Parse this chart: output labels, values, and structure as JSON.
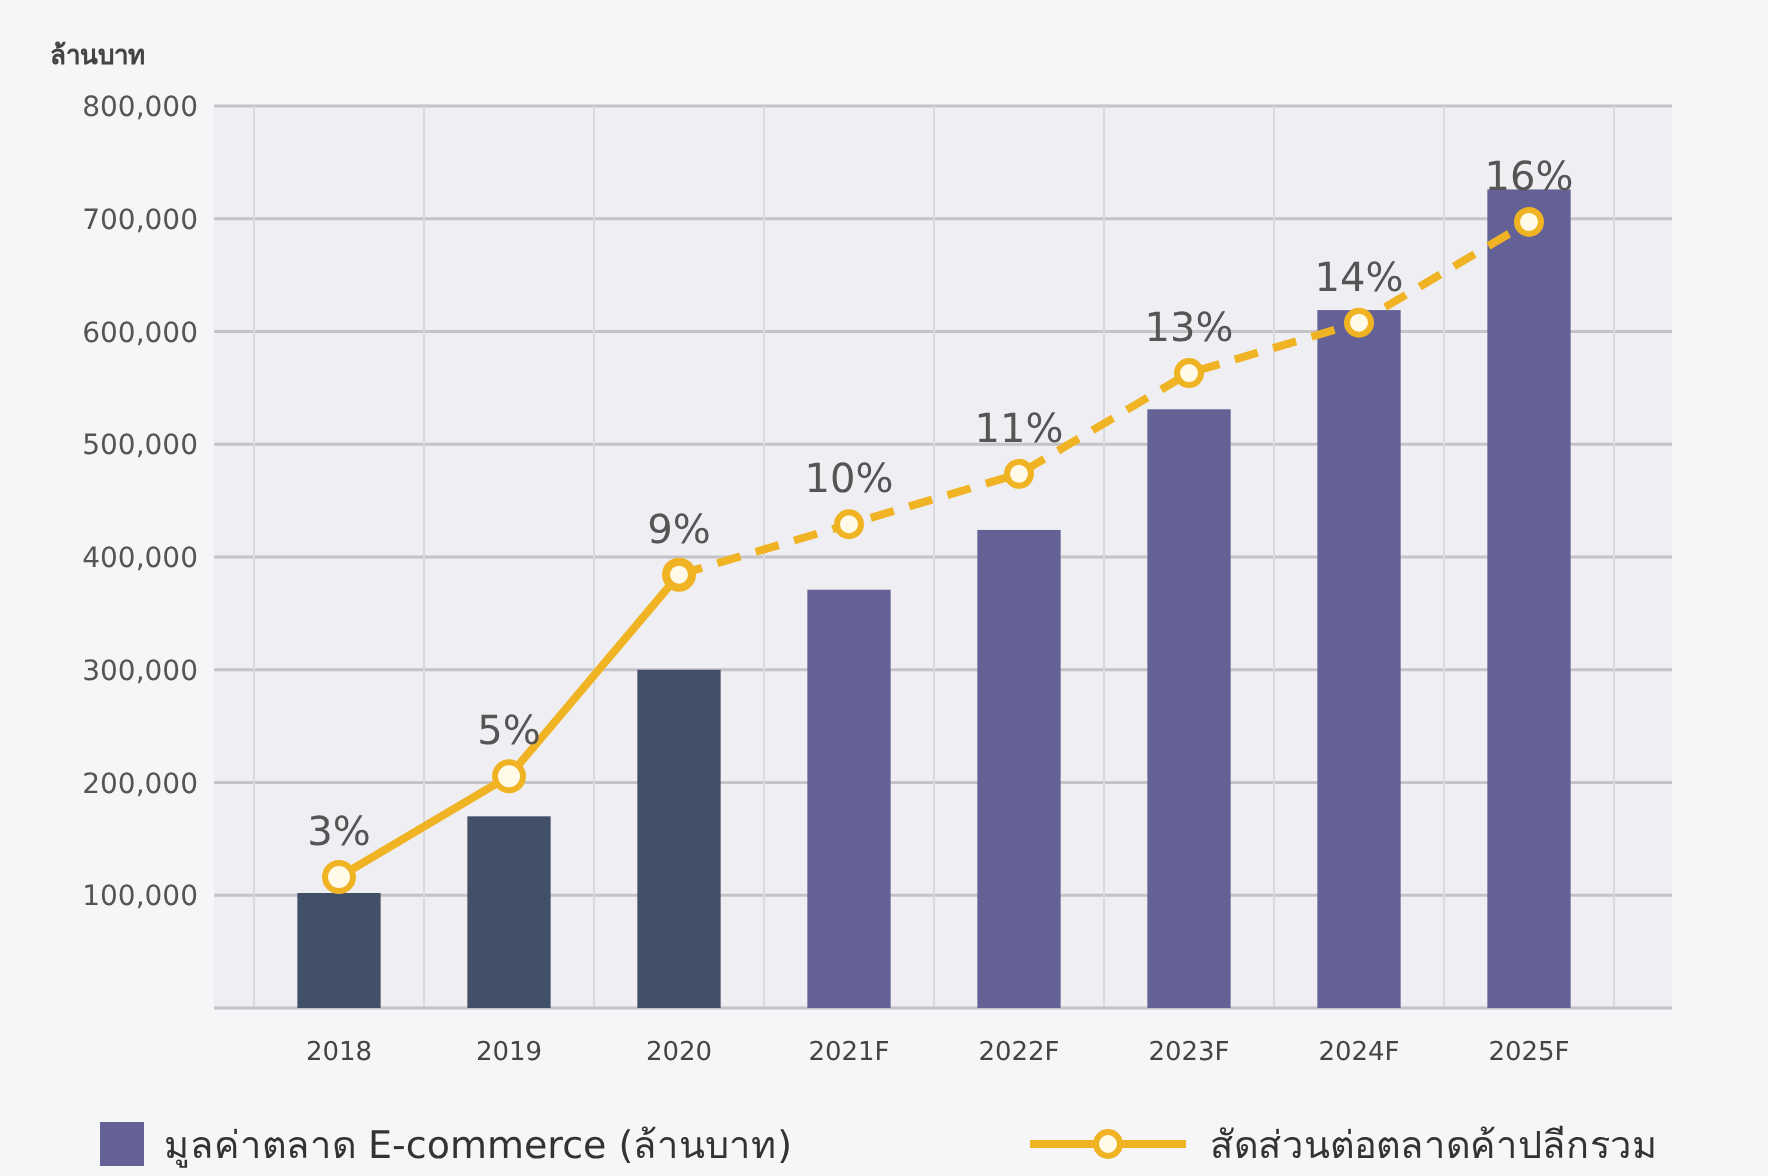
{
  "chart_data": {
    "type": "bar",
    "ylabel": "ล้านบาท",
    "categories": [
      "2018",
      "2019",
      "2020",
      "2021F",
      "2022F",
      "2023F",
      "2024F",
      "2025F"
    ],
    "series": [
      {
        "name": "มูลค่าตลาด E-commerce (ล้านบาท)",
        "colors": [
          "#414f68",
          "#414f68",
          "#414f68",
          "#636196",
          "#636196",
          "#636196",
          "#636196",
          "#636196"
        ],
        "values": [
          102000,
          170000,
          300000,
          371000,
          424000,
          531000,
          619000,
          726000
        ]
      },
      {
        "type": "line",
        "axis": "y2",
        "name": "สัดส่วนต่อตลาดค้าปลีกรวม",
        "color": "#f0b323",
        "line_style": "solid",
        "marker": "circle",
        "values": [
          3,
          5,
          9,
          null,
          null,
          null,
          null,
          null
        ],
        "value_labels": [
          "3%",
          "5%",
          "9%",
          null,
          null,
          null,
          null,
          null
        ]
      },
      {
        "type": "line",
        "axis": "y2",
        "color": "#f0b323",
        "line_style": "dashed",
        "marker": "circle",
        "values": [
          null,
          null,
          9,
          10,
          11,
          13,
          14,
          16
        ],
        "value_labels": [
          null,
          null,
          null,
          "10%",
          "11%",
          "13%",
          "14%",
          "16%"
        ]
      }
    ],
    "ylim": [
      0,
      800000
    ],
    "yticks": [
      {
        "value": 100000,
        "label": "100,000"
      },
      {
        "value": 200000,
        "label": "200,000"
      },
      {
        "value": 300000,
        "label": "300,000"
      },
      {
        "value": 400000,
        "label": "400,000"
      },
      {
        "value": 500000,
        "label": "500,000"
      },
      {
        "value": 600000,
        "label": "600,000"
      },
      {
        "value": 700000,
        "label": "700,000"
      },
      {
        "value": 800000,
        "label": "800,000"
      }
    ],
    "y2lim": [
      0.4,
      18.3
    ],
    "grid": true,
    "legend": "bottom"
  }
}
